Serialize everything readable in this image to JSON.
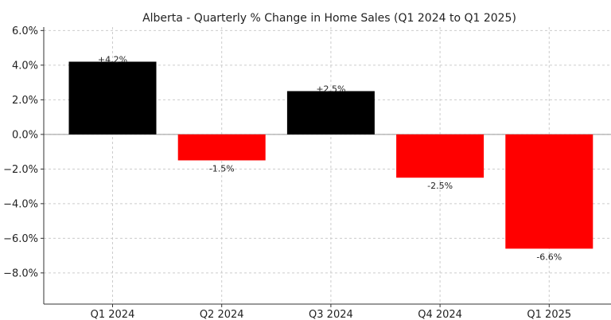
{
  "chart_data": {
    "type": "bar",
    "title": "Alberta - Quarterly % Change in Home Sales (Q1 2024 to Q1 2025)",
    "xlabel": "",
    "ylabel": "",
    "categories": [
      "Q1 2024",
      "Q2 2024",
      "Q3 2024",
      "Q4 2024",
      "Q1 2025"
    ],
    "values": [
      4.2,
      -1.5,
      2.5,
      -2.5,
      -6.6
    ],
    "data_labels": [
      "+4.2%",
      "-1.5%",
      "+2.5%",
      "-2.5%",
      "-6.6%"
    ],
    "ylim": [
      -9.8,
      6.2
    ],
    "yticks": [
      6,
      4,
      2,
      0,
      -2,
      -4,
      -6,
      -8
    ],
    "ytick_labels": [
      "6.0%",
      "4.0%",
      "2.0%",
      "0.0%",
      "−2.0%",
      "−4.0%",
      "−6.0%",
      "−8.0%"
    ],
    "grid": true,
    "colors": {
      "positive": "#000000",
      "negative": "#ff0000",
      "zero_line": "#999999"
    }
  }
}
